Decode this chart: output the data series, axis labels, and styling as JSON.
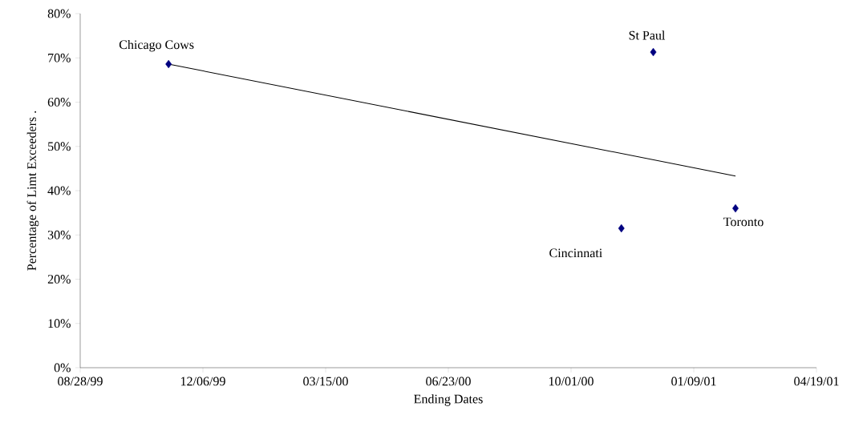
{
  "chart_data": {
    "type": "scatter",
    "xlabel": "Ending Dates",
    "ylabel": "Percentage of Limt Exceeders .",
    "x": [
      "1999-11-08",
      "2000-12-07",
      "2000-11-11",
      "2001-02-12"
    ],
    "series": [
      {
        "type": "scatter",
        "color": "#000080",
        "marker": "diamond",
        "values": [
          68.6,
          71.3,
          31.5,
          36.0
        ]
      },
      {
        "type": "line",
        "color": "#000000",
        "marker": "none",
        "x": [
          "1999-11-08",
          "2001-02-12"
        ],
        "values": [
          68.6,
          43.3
        ]
      }
    ],
    "annotations": [
      {
        "text": "Chicago Cows",
        "x": "1999-11-08",
        "y": 68.6
      },
      {
        "text": "St Paul",
        "x": "2000-12-07",
        "y": 71.3
      },
      {
        "text": "Cincinnati",
        "x": "2000-11-11",
        "y": 31.5
      },
      {
        "text": "Toronto",
        "x": "2001-02-12",
        "y": 36.0
      }
    ],
    "xlim": [
      "1999-08-28",
      "2001-04-19"
    ],
    "xticks": [
      {
        "value": "1999-08-28",
        "label": "08/28/99"
      },
      {
        "value": "1999-12-06",
        "label": "12/06/99"
      },
      {
        "value": "2000-03-15",
        "label": "03/15/00"
      },
      {
        "value": "2000-06-23",
        "label": "06/23/00"
      },
      {
        "value": "2000-10-01",
        "label": "10/01/00"
      },
      {
        "value": "2001-01-09",
        "label": "01/09/01"
      },
      {
        "value": "2001-04-19",
        "label": "04/19/01"
      }
    ],
    "ylim": [
      0,
      80
    ],
    "yticks": [
      {
        "value": 0,
        "label": "0%"
      },
      {
        "value": 10,
        "label": "10%"
      },
      {
        "value": 20,
        "label": "20%"
      },
      {
        "value": 30,
        "label": "30%"
      },
      {
        "value": 40,
        "label": "40%"
      },
      {
        "value": 50,
        "label": "50%"
      },
      {
        "value": 60,
        "label": "60%"
      },
      {
        "value": 70,
        "label": "70%"
      },
      {
        "value": 80,
        "label": "80%"
      }
    ],
    "grid": false
  }
}
